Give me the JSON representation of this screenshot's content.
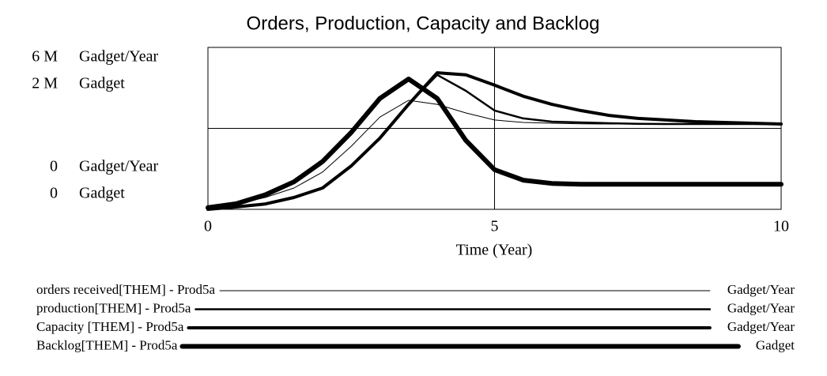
{
  "chart_data": {
    "type": "line",
    "title": "Orders, Production, Capacity and Backlog",
    "xlabel": "Time (Year)",
    "ylabel": "Gadget/Year",
    "y2label": "Gadget",
    "x": [
      0,
      0.5,
      1,
      1.5,
      2,
      2.5,
      3,
      3.5,
      4,
      4.5,
      5,
      5.5,
      6,
      6.5,
      7,
      7.5,
      8,
      8.5,
      9,
      9.5,
      10
    ],
    "xlim": [
      0,
      10
    ],
    "xticks": [
      0,
      5,
      10
    ],
    "ylim": [
      0,
      6000000
    ],
    "yticks": [
      0,
      {
        "value": 6000000,
        "label": "6 M"
      }
    ],
    "y2lim": [
      0,
      2000000
    ],
    "y2ticks": [
      0,
      {
        "value": 2000000,
        "label": "2 M"
      }
    ],
    "grid": true,
    "series": [
      {
        "name": "orders received[THEM] - Prod5a",
        "units": "Gadget/Year",
        "color": "#000000",
        "line_width": 1,
        "values": [
          60000,
          200000,
          440000,
          790000,
          1380000,
          2340000,
          3420000,
          4040000,
          3890000,
          3570000,
          3310000,
          3220000,
          3190000,
          3170000,
          3160000,
          3160000,
          3160000,
          3160000,
          3160000,
          3160000,
          3160000
        ]
      },
      {
        "name": "production[THEM] - Prod5a",
        "units": "Gadget/Year",
        "color": "#000000",
        "line_width": 2.5,
        "values": [
          0,
          90000,
          200000,
          440000,
          790000,
          1610000,
          2640000,
          3890000,
          4980000,
          4390000,
          3660000,
          3370000,
          3250000,
          3220000,
          3190000,
          3170000,
          3160000,
          3160000,
          3160000,
          3160000,
          3160000
        ]
      },
      {
        "name": "Capacity [THEM] - Prod5a",
        "units": "Gadget/Year",
        "color": "#000000",
        "line_width": 4,
        "values": [
          0,
          90000,
          200000,
          440000,
          790000,
          1610000,
          2640000,
          3890000,
          5060000,
          4980000,
          4600000,
          4190000,
          3890000,
          3660000,
          3480000,
          3370000,
          3310000,
          3250000,
          3220000,
          3190000,
          3160000
        ]
      },
      {
        "name": "Backlog[THEM] - Prod5a",
        "units": "Gadget",
        "axis": "y2",
        "color": "#000000",
        "line_width": 6,
        "values": [
          20000,
          70000,
          180000,
          340000,
          590000,
          950000,
          1370000,
          1610000,
          1370000,
          850000,
          490000,
          360000,
          320000,
          310000,
          310000,
          310000,
          310000,
          310000,
          310000,
          310000,
          310000
        ]
      }
    ]
  }
}
